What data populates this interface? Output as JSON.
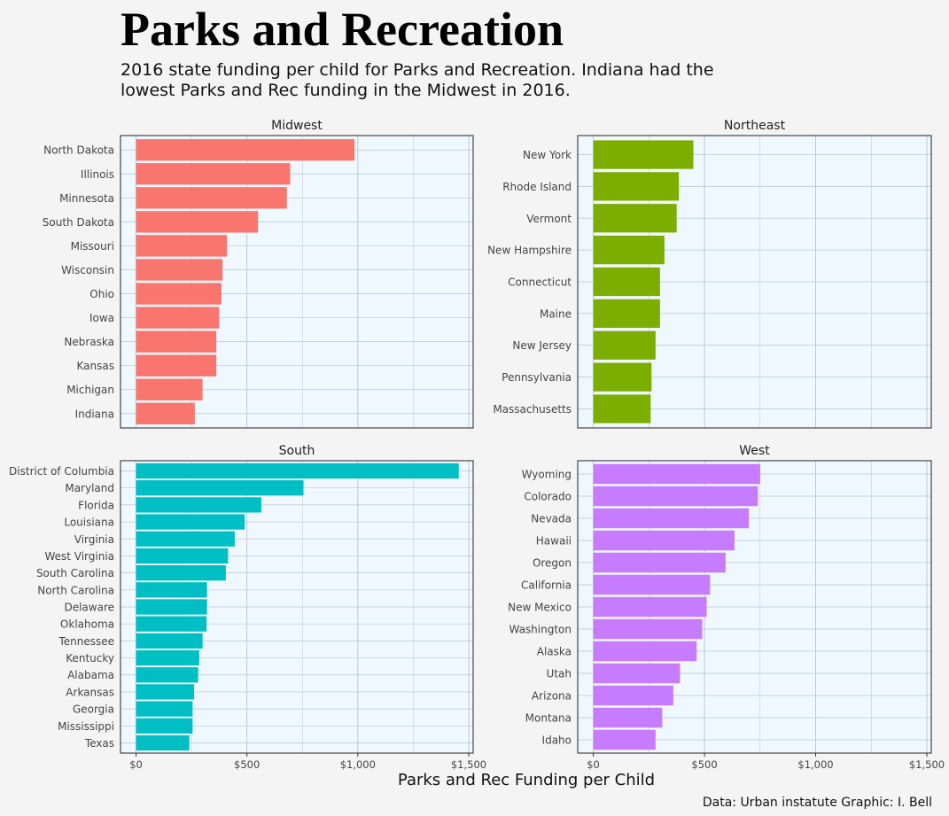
{
  "title": "Parks and Recreation",
  "subtitle": "2016 state funding per child for Parks and Recreation. Indiana had the\n lowest Parks and Rec funding in the Midwest in 2016.",
  "caption": "Data: Urban instatute   Graphic: I. Bell",
  "colors": {
    "Midwest": "#f8766d",
    "Northeast": "#7cae00",
    "South": "#00bfc4",
    "West": "#c77cff",
    "panel_bg": "#f0f8ff",
    "grid": "#b8c4d2"
  },
  "chart_data": {
    "type": "bar",
    "orientation": "horizontal",
    "xlabel": "Parks and Rec Funding per Child",
    "ylabel": "",
    "xlim": [
      -70,
      1520
    ],
    "x_ticks": [
      0,
      500,
      1000,
      1500
    ],
    "x_tick_labels": [
      "$0",
      "$500",
      "$1,000",
      "$1,500"
    ],
    "grid": true,
    "facets": [
      {
        "name": "Midwest",
        "categories": [
          "North Dakota",
          "Illinois",
          "Minnesota",
          "South Dakota",
          "Missouri",
          "Wisconsin",
          "Ohio",
          "Iowa",
          "Nebraska",
          "Kansas",
          "Michigan",
          "Indiana"
        ],
        "values": [
          985,
          695,
          680,
          550,
          410,
          390,
          385,
          375,
          362,
          362,
          300,
          265
        ]
      },
      {
        "name": "Northeast",
        "categories": [
          "New York",
          "Rhode Island",
          "Vermont",
          "New Hampshire",
          "Connecticut",
          "Maine",
          "New Jersey",
          "Pennsylvania",
          "Massachusetts"
        ],
        "values": [
          450,
          385,
          375,
          320,
          300,
          300,
          280,
          262,
          258
        ]
      },
      {
        "name": "South",
        "categories": [
          "District of Columbia",
          "Maryland",
          "Florida",
          "Louisiana",
          "Virginia",
          "West Virginia",
          "South Carolina",
          "North Carolina",
          "Delaware",
          "Oklahoma",
          "Tennessee",
          "Kentucky",
          "Alabama",
          "Arkansas",
          "Georgia",
          "Mississippi",
          "Texas"
        ],
        "values": [
          1455,
          755,
          565,
          490,
          445,
          415,
          405,
          320,
          320,
          318,
          300,
          285,
          280,
          262,
          255,
          255,
          240
        ]
      },
      {
        "name": "West",
        "categories": [
          "Wyoming",
          "Colorado",
          "Nevada",
          "Hawaii",
          "Oregon",
          "California",
          "New Mexico",
          "Washington",
          "Alaska",
          "Utah",
          "Arizona",
          "Montana",
          "Idaho"
        ],
        "values": [
          750,
          740,
          700,
          635,
          595,
          525,
          510,
          490,
          465,
          390,
          360,
          310,
          280
        ]
      }
    ]
  }
}
